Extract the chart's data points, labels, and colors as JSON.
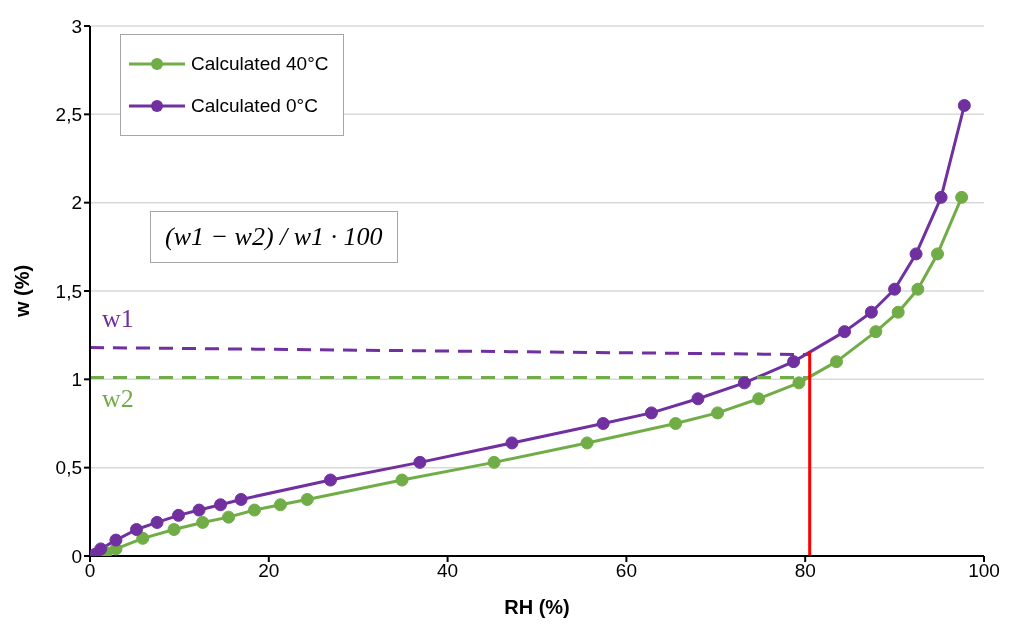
{
  "chart_data": {
    "type": "line",
    "xlabel": "RH (%)",
    "ylabel": "w (%)",
    "xlim": [
      0,
      100
    ],
    "ylim": [
      0,
      3
    ],
    "xticks": [
      0,
      20,
      40,
      60,
      80,
      100
    ],
    "yticks": [
      0,
      {
        "value": 0.5,
        "label": "0,5"
      },
      1,
      {
        "value": 1.5,
        "label": "1,5"
      },
      2,
      {
        "value": 2.5,
        "label": "2,5"
      },
      3
    ],
    "grid": "y",
    "legend": "top left",
    "marker": "circle",
    "line_style": "solid",
    "series": [
      {
        "name": "Calculated 40°C",
        "color": "#70ad47",
        "x": [
          1.8,
          2.9,
          5.9,
          9.4,
          12.6,
          15.5,
          18.4,
          21.3,
          24.3,
          34.9,
          45.2,
          55.6,
          65.5,
          70.2,
          74.8,
          79.3,
          83.5,
          87.9,
          90.4,
          92.6,
          94.8,
          97.5
        ],
        "values": [
          0.02,
          0.04,
          0.1,
          0.15,
          0.19,
          0.22,
          0.26,
          0.29,
          0.32,
          0.43,
          0.53,
          0.64,
          0.75,
          0.81,
          0.89,
          0.98,
          1.1,
          1.27,
          1.38,
          1.51,
          1.71,
          2.03
        ]
      },
      {
        "name": "Calculated 0°C",
        "color": "#7030a0",
        "x": [
          0.6,
          1.2,
          2.9,
          5.2,
          7.5,
          9.9,
          12.2,
          14.6,
          16.9,
          26.9,
          36.9,
          47.2,
          57.4,
          62.8,
          68.0,
          73.2,
          78.7,
          84.4,
          87.4,
          90.0,
          92.4,
          95.2,
          97.8
        ],
        "values": [
          0.01,
          0.04,
          0.09,
          0.15,
          0.19,
          0.23,
          0.26,
          0.29,
          0.32,
          0.43,
          0.53,
          0.64,
          0.75,
          0.81,
          0.89,
          0.98,
          1.1,
          1.27,
          1.38,
          1.51,
          1.71,
          2.03,
          2.55
        ]
      },
      {
        "color": "#7030a0",
        "line_style": "dashed",
        "marker": "none",
        "x": [
          0,
          80.5
        ],
        "values": [
          1.18,
          1.14
        ]
      },
      {
        "color": "#70ad47",
        "line_style": "dashed",
        "marker": "none",
        "x": [
          0,
          80.5
        ],
        "values": [
          1.01,
          1.01
        ]
      },
      {
        "color": "#ff0000",
        "marker": "none",
        "x": [
          80.5,
          80.5
        ],
        "values": [
          0,
          1.16
        ]
      }
    ],
    "annotations": [
      "w1",
      "w2",
      "(w1 − w2) / w1 · 100"
    ]
  }
}
